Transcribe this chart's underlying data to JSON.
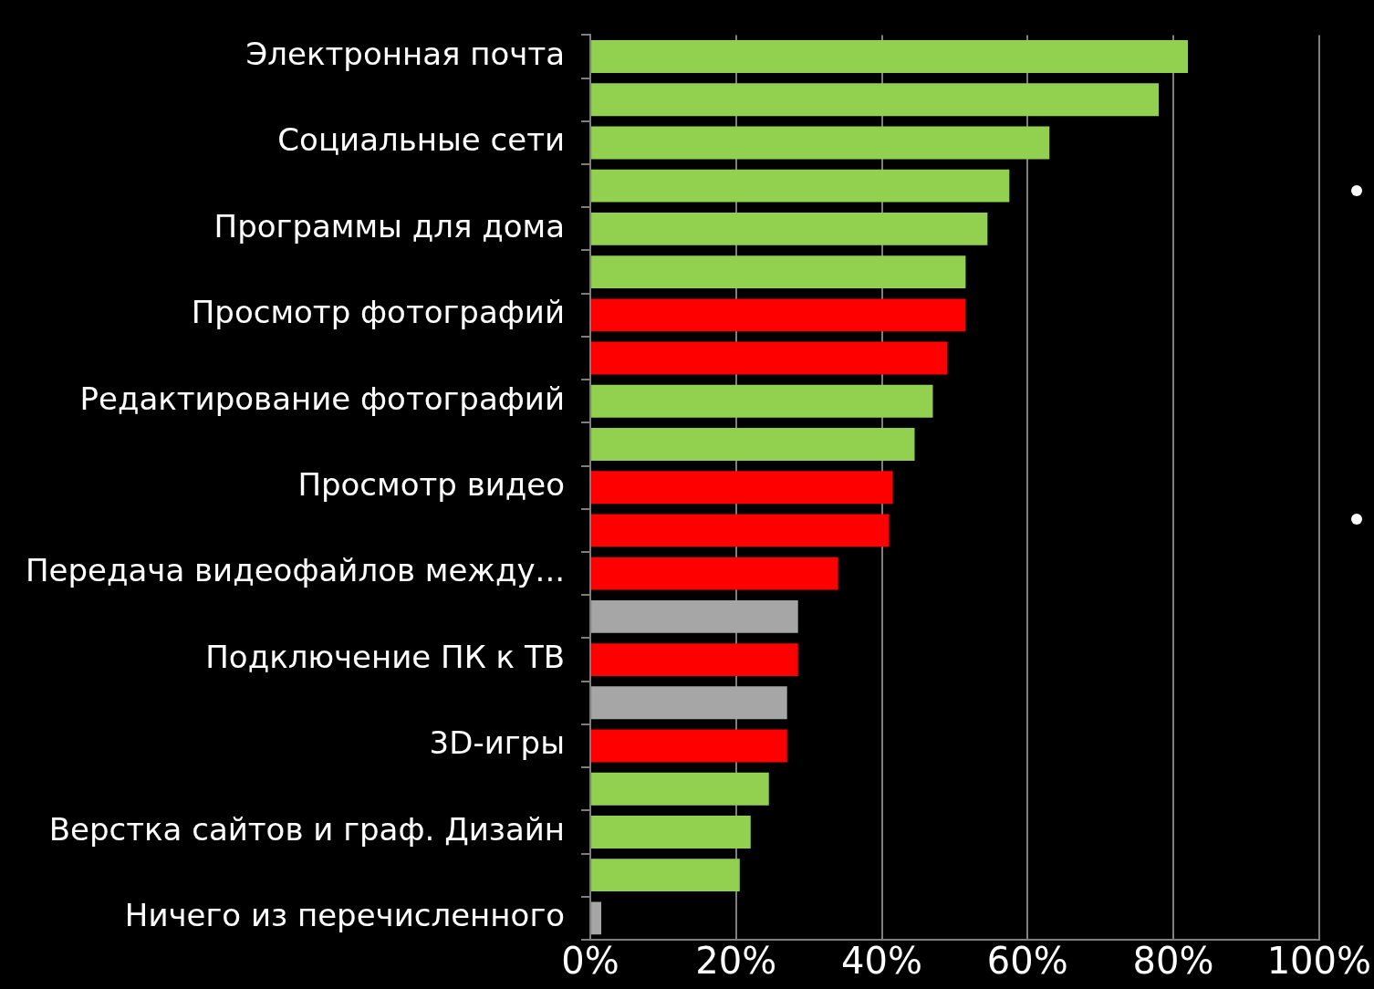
{
  "chart_data": {
    "type": "bar",
    "orientation": "horizontal",
    "categories": [
      "Электронная почта",
      null,
      "Социальные сети",
      null,
      "Программы для дома",
      null,
      "Просмотр фотографий",
      null,
      "Редактирование фотографий",
      null,
      "Просмотр видео",
      null,
      "Передача видеофайлов между...",
      null,
      "Подключение ПК к ТВ",
      null,
      "3D-игры",
      null,
      "Верстка сайтов и граф. Дизайн",
      null,
      "Ничего из перечисленного"
    ],
    "values": [
      82,
      78,
      63,
      57.5,
      54.5,
      51.5,
      51.5,
      49,
      47,
      44.5,
      41.5,
      41,
      34,
      28.5,
      28.5,
      27,
      27,
      24.5,
      22,
      20.5,
      1.5
    ],
    "colors": [
      "#92d050",
      "#92d050",
      "#92d050",
      "#92d050",
      "#92d050",
      "#92d050",
      "#ff0000",
      "#ff0000",
      "#92d050",
      "#92d050",
      "#ff0000",
      "#ff0000",
      "#ff0000",
      "#a6a6a6",
      "#ff0000",
      "#a6a6a6",
      "#ff0000",
      "#92d050",
      "#92d050",
      "#92d050",
      "#a6a6a6"
    ],
    "xlim": [
      0,
      100
    ],
    "xticks": [
      {
        "value": 0,
        "label": "0%"
      },
      {
        "value": 20,
        "label": "20%"
      },
      {
        "value": 40,
        "label": "40%"
      },
      {
        "value": 60,
        "label": "60%"
      },
      {
        "value": 80,
        "label": "80%"
      },
      {
        "value": 100,
        "label": "100%"
      }
    ],
    "grid": "x",
    "legend": false
  }
}
